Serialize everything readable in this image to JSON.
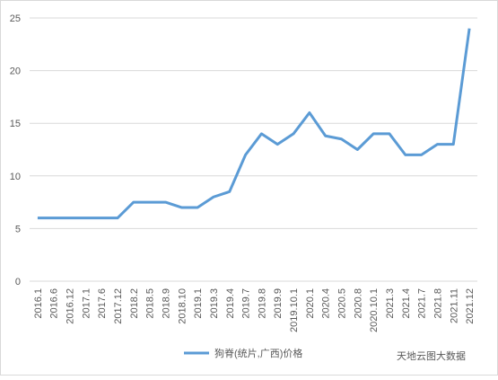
{
  "chart_data": {
    "type": "line",
    "categories": [
      "2016.1",
      "2016.6",
      "2016.12",
      "2017.1",
      "2017.6",
      "2017.12",
      "2018.2",
      "2018.5",
      "2018.9",
      "2018.10",
      "2019.1",
      "2019.3",
      "2019.4",
      "2019.7",
      "2019.8",
      "2019.9",
      "2019.10.1",
      "2020.1",
      "2020.4",
      "2020.5",
      "2020.8",
      "2020.10.1",
      "2021.3",
      "2021.4",
      "2021.7",
      "2021.8",
      "2021.11",
      "2021.12"
    ],
    "series": [
      {
        "name": "狗脊(统片,广西)价格",
        "color": "#5b9bd5",
        "values": [
          6,
          6,
          6,
          6,
          6,
          6,
          7.5,
          7.5,
          7.5,
          7,
          7,
          8,
          8.5,
          12,
          14,
          13,
          14,
          16,
          13.8,
          13.5,
          12.5,
          14,
          14,
          12,
          12,
          13,
          13,
          24
        ]
      }
    ],
    "ylim": [
      0,
      25
    ],
    "yticks": [
      0,
      5,
      10,
      15,
      20,
      25
    ],
    "grid": true,
    "legend": "bottom",
    "watermark": "天地云图大数据"
  }
}
